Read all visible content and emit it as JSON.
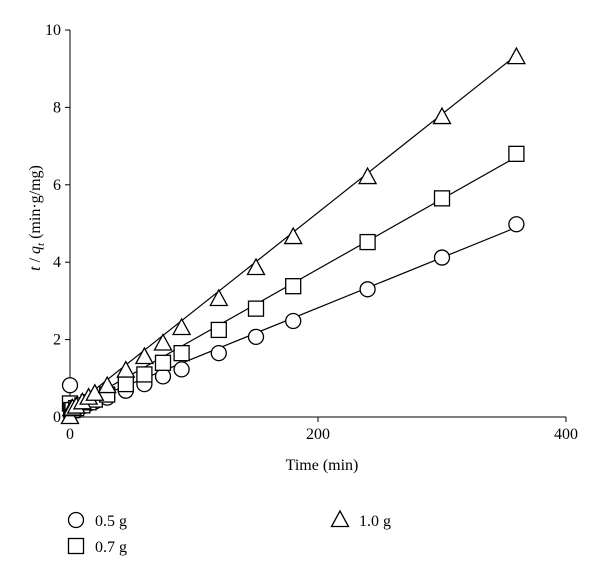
{
  "chart_data": {
    "type": "scatter",
    "title": "",
    "xlabel": "Time (min)",
    "ylabel": "t / q_t (min·g/mg)",
    "ylabel_parts": {
      "t": "t",
      "slash": " / ",
      "q": "q",
      "sub": "t",
      "unit": "  (min·g/mg)"
    },
    "xlim": [
      0,
      400
    ],
    "ylim": [
      0,
      10
    ],
    "x_ticks": [
      0,
      200,
      400
    ],
    "y_ticks": [
      0,
      2,
      4,
      6,
      8,
      10
    ],
    "grid": false,
    "legend_position": "bottom",
    "series": [
      {
        "name": "0.5 g",
        "marker": "circle",
        "points": [
          [
            0,
            0.82
          ],
          [
            1,
            0.2
          ],
          [
            2,
            0.15
          ],
          [
            5,
            0.2
          ],
          [
            10,
            0.28
          ],
          [
            15,
            0.35
          ],
          [
            20,
            0.4
          ],
          [
            30,
            0.5
          ],
          [
            45,
            0.68
          ],
          [
            60,
            0.85
          ],
          [
            75,
            1.05
          ],
          [
            90,
            1.23
          ],
          [
            120,
            1.65
          ],
          [
            150,
            2.07
          ],
          [
            180,
            2.48
          ],
          [
            240,
            3.3
          ],
          [
            300,
            4.12
          ],
          [
            360,
            4.98
          ]
        ],
        "fit": [
          [
            0,
            0.22
          ],
          [
            360,
            4.9
          ]
        ]
      },
      {
        "name": "0.7 g",
        "marker": "square",
        "points": [
          [
            0,
            0.35
          ],
          [
            1,
            0.18
          ],
          [
            2,
            0.18
          ],
          [
            5,
            0.23
          ],
          [
            10,
            0.3
          ],
          [
            15,
            0.38
          ],
          [
            20,
            0.45
          ],
          [
            30,
            0.58
          ],
          [
            45,
            0.85
          ],
          [
            60,
            1.1
          ],
          [
            75,
            1.4
          ],
          [
            90,
            1.65
          ],
          [
            120,
            2.25
          ],
          [
            150,
            2.8
          ],
          [
            180,
            3.38
          ],
          [
            240,
            4.52
          ],
          [
            300,
            5.65
          ],
          [
            360,
            6.8
          ]
        ],
        "fit": [
          [
            0,
            0.2
          ],
          [
            360,
            6.72
          ]
        ]
      },
      {
        "name": "1.0 g",
        "marker": "triangle",
        "points": [
          [
            0,
            0.0
          ],
          [
            1,
            0.2
          ],
          [
            2,
            0.22
          ],
          [
            5,
            0.27
          ],
          [
            10,
            0.38
          ],
          [
            15,
            0.5
          ],
          [
            20,
            0.6
          ],
          [
            30,
            0.8
          ],
          [
            45,
            1.2
          ],
          [
            60,
            1.55
          ],
          [
            75,
            1.9
          ],
          [
            90,
            2.3
          ],
          [
            120,
            3.05
          ],
          [
            150,
            3.85
          ],
          [
            180,
            4.65
          ],
          [
            240,
            6.2
          ],
          [
            300,
            7.75
          ],
          [
            360,
            9.3
          ]
        ],
        "fit": [
          [
            0,
            0.2
          ],
          [
            360,
            9.35
          ]
        ]
      }
    ]
  }
}
